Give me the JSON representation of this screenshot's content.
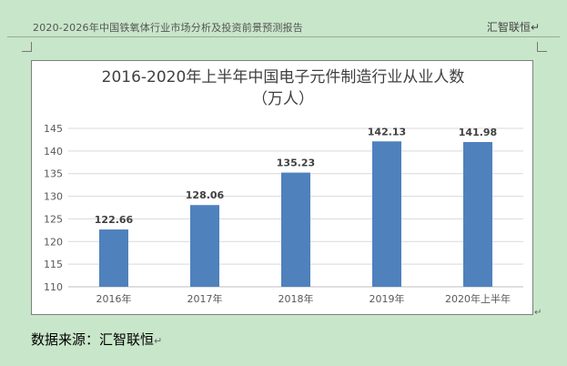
{
  "header": {
    "title": "2020-2026年中国铁氧体行业市场分析及投资前景预测报告",
    "brand": "汇智联恒",
    "para_mark": "↵"
  },
  "source": {
    "text": "数据来源：汇智联恒",
    "para_mark": "↵"
  },
  "chart_data": {
    "type": "bar",
    "title_line1": "2016-2020年上半年中国电子元件制造行业从业人数",
    "title_line2": "（万人）",
    "categories": [
      "2016年",
      "2017年",
      "2018年",
      "2019年",
      "2020年上半年"
    ],
    "values": [
      122.66,
      128.06,
      135.23,
      142.13,
      141.98
    ],
    "value_labels": [
      "122.66",
      "128.06",
      "135.23",
      "142.13",
      "141.98"
    ],
    "ylim": [
      110,
      145
    ],
    "yticks": [
      110,
      115,
      120,
      125,
      130,
      135,
      140,
      145
    ],
    "grid": true,
    "legend": "none",
    "bar_color": "#4f81bd"
  }
}
